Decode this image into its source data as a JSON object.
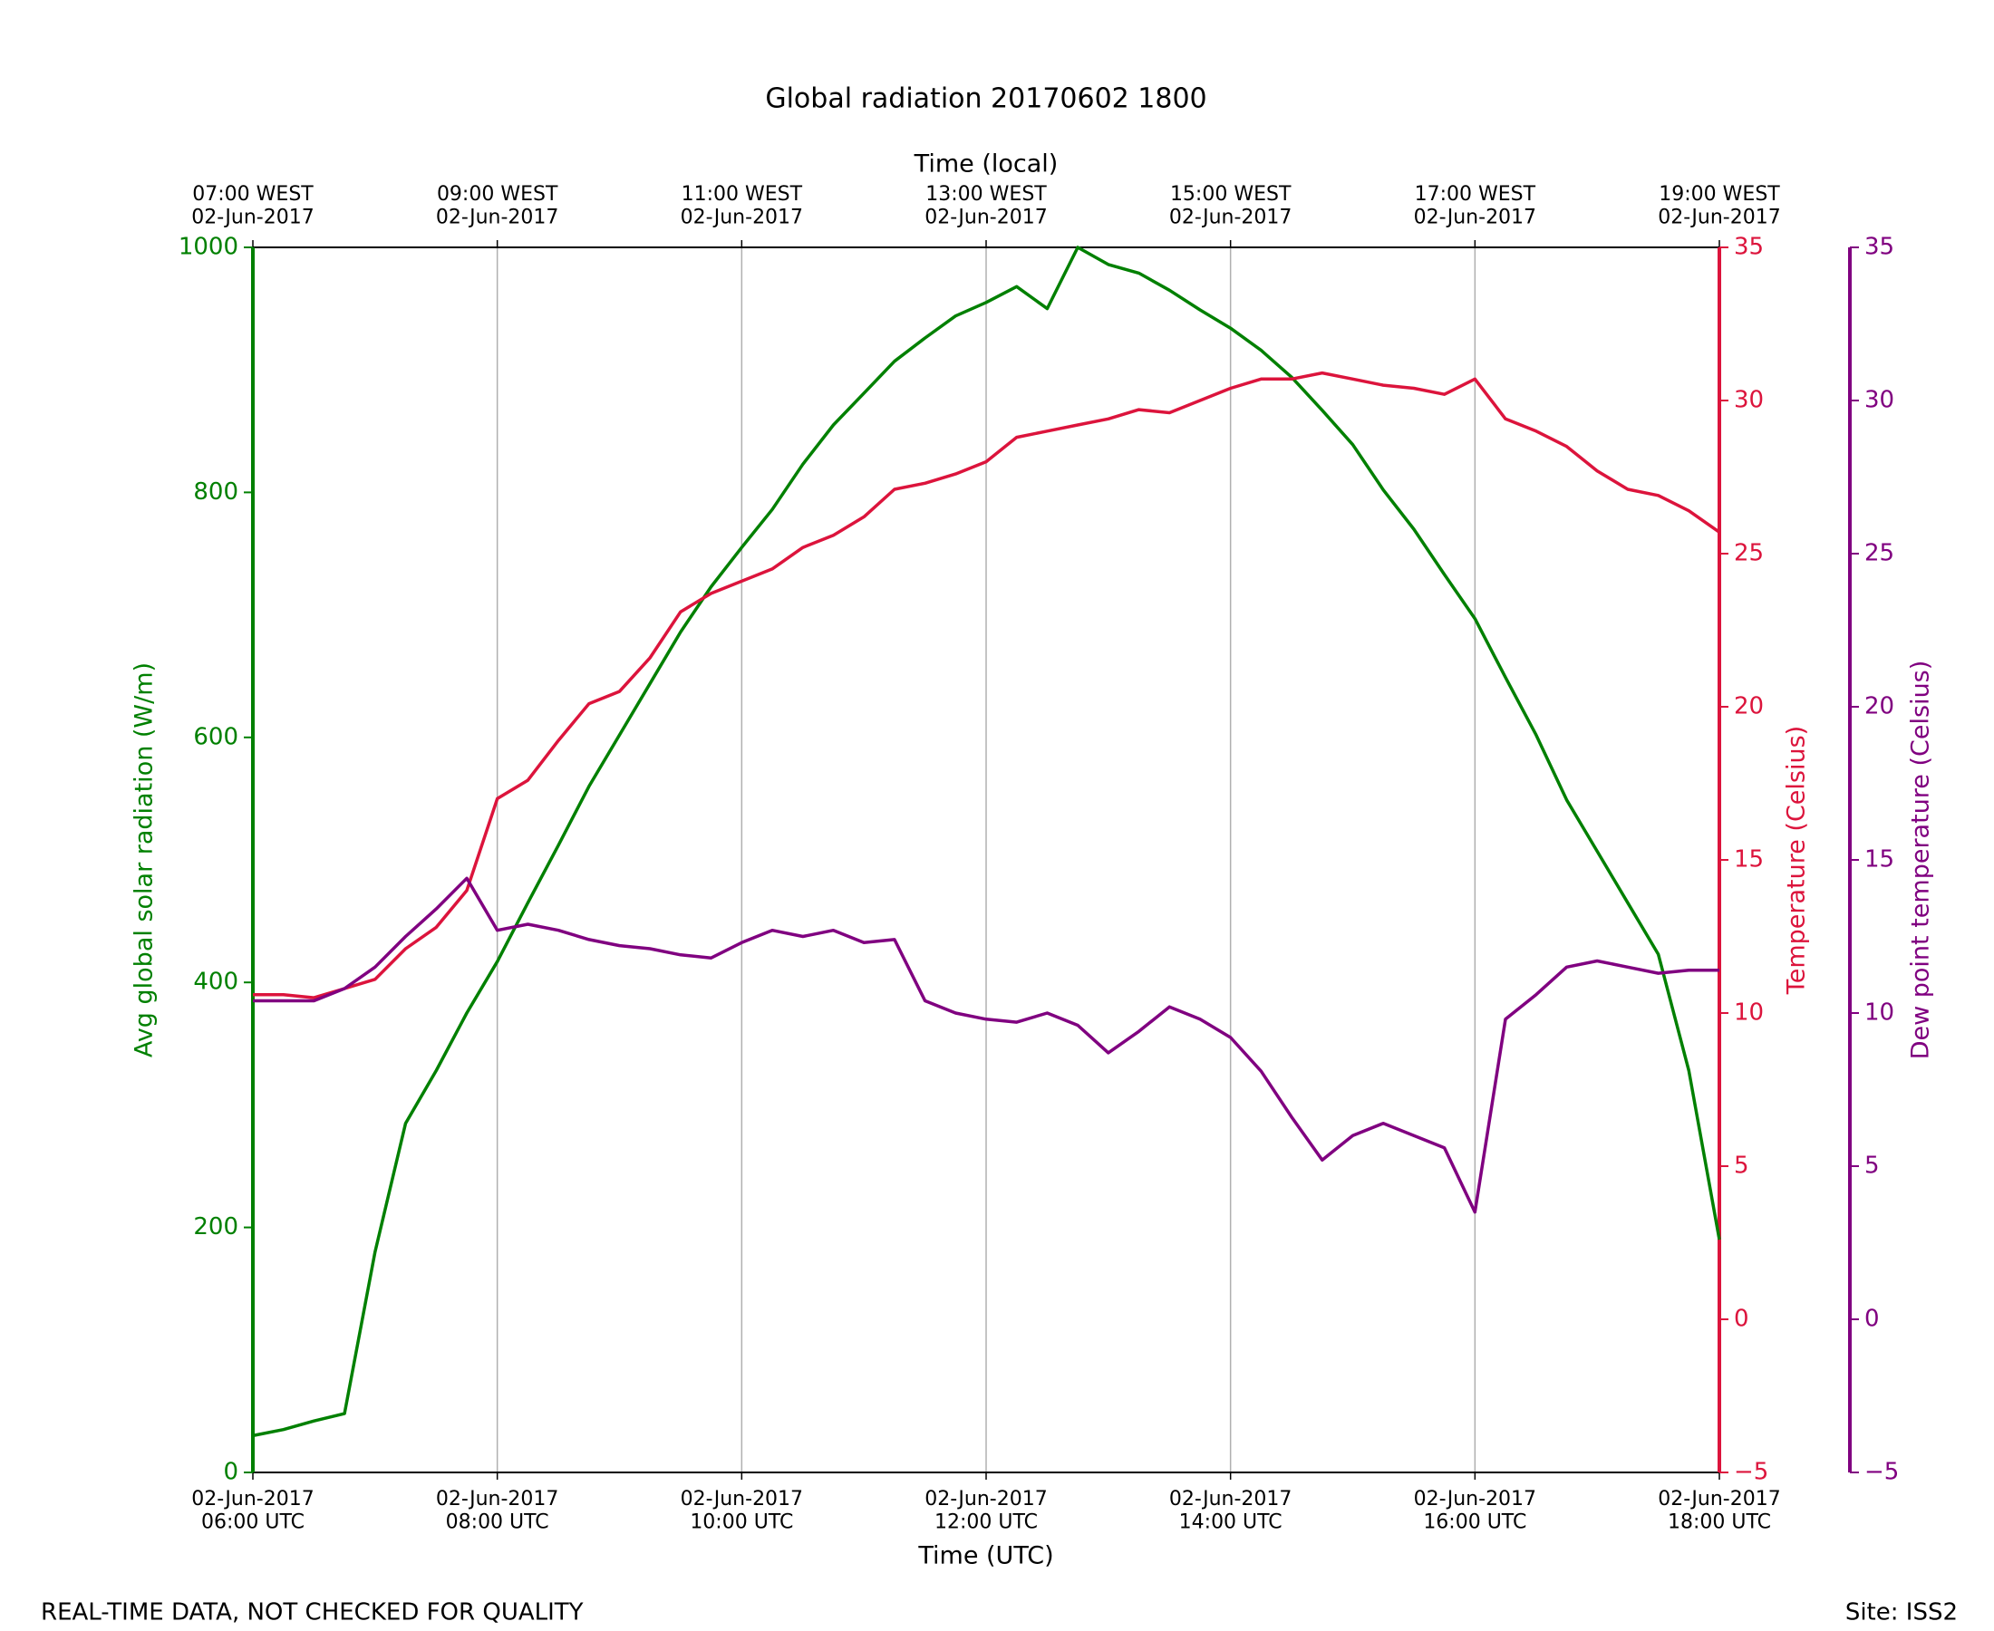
{
  "chart_data": {
    "type": "line",
    "title": "Global radiation 20170602 1800",
    "xlabel": "Time (UTC)",
    "x2label": "Time (local)",
    "ylabel": "Avg global solar radiation (W/m)",
    "y2label": "Temperature (Celsius)",
    "y3label": "Dew point temperature (Celsius)",
    "footer_left": "REAL-TIME DATA, NOT CHECKED FOR QUALITY",
    "footer_right": "Site: ISS2",
    "grid": "x",
    "x": [
      "2017-06-02 06:00",
      "2017-06-02 06:15",
      "2017-06-02 06:30",
      "2017-06-02 06:45",
      "2017-06-02 07:00",
      "2017-06-02 07:15",
      "2017-06-02 07:30",
      "2017-06-02 07:45",
      "2017-06-02 08:00",
      "2017-06-02 08:15",
      "2017-06-02 08:30",
      "2017-06-02 08:45",
      "2017-06-02 09:00",
      "2017-06-02 09:15",
      "2017-06-02 09:30",
      "2017-06-02 09:45",
      "2017-06-02 10:00",
      "2017-06-02 10:15",
      "2017-06-02 10:30",
      "2017-06-02 10:45",
      "2017-06-02 11:00",
      "2017-06-02 11:15",
      "2017-06-02 11:30",
      "2017-06-02 11:45",
      "2017-06-02 12:00",
      "2017-06-02 12:15",
      "2017-06-02 12:30",
      "2017-06-02 12:45",
      "2017-06-02 13:00",
      "2017-06-02 13:15",
      "2017-06-02 13:30",
      "2017-06-02 13:45",
      "2017-06-02 14:00",
      "2017-06-02 14:15",
      "2017-06-02 14:30",
      "2017-06-02 14:45",
      "2017-06-02 15:00",
      "2017-06-02 15:15",
      "2017-06-02 15:30",
      "2017-06-02 15:45",
      "2017-06-02 16:00",
      "2017-06-02 16:15",
      "2017-06-02 16:30",
      "2017-06-02 16:45",
      "2017-06-02 17:00",
      "2017-06-02 17:15",
      "2017-06-02 17:30",
      "2017-06-02 17:45",
      "2017-06-02 18:00"
    ],
    "series": [
      {
        "name": "Avg global solar radiation",
        "color": "#008000",
        "axis": "y",
        "values": [
          30,
          35,
          42,
          48,
          180,
          285,
          328,
          375,
          417,
          465,
          512,
          560,
          602,
          644,
          686,
          723,
          755,
          786,
          823,
          855,
          881,
          907,
          926,
          944,
          955,
          968,
          950,
          1000,
          986,
          979,
          965,
          949,
          934,
          916,
          894,
          867,
          839,
          802,
          770,
          733,
          697,
          649,
          602,
          549,
          507,
          465,
          423,
          328,
          190
        ]
      },
      {
        "name": "Temperature",
        "color": "#dc143c",
        "axis": "y2",
        "values": [
          10.6,
          10.6,
          10.5,
          10.8,
          11.1,
          12.1,
          12.8,
          14.0,
          17.0,
          17.6,
          18.9,
          20.1,
          20.5,
          21.6,
          23.1,
          23.7,
          24.1,
          24.5,
          25.2,
          25.6,
          26.2,
          27.1,
          27.3,
          27.6,
          28.0,
          28.8,
          29.0,
          29.2,
          29.4,
          29.7,
          29.6,
          30.0,
          30.4,
          30.7,
          30.7,
          30.9,
          30.7,
          30.5,
          30.4,
          30.2,
          30.7,
          29.4,
          29.0,
          28.5,
          27.7,
          27.1,
          26.9,
          26.4,
          25.7
        ]
      },
      {
        "name": "Dew point temperature",
        "color": "#800080",
        "axis": "y3",
        "values": [
          10.4,
          10.4,
          10.4,
          10.8,
          11.5,
          12.5,
          13.4,
          14.4,
          12.7,
          12.9,
          12.7,
          12.4,
          12.2,
          12.1,
          11.9,
          11.8,
          12.3,
          12.7,
          12.5,
          12.7,
          12.3,
          12.4,
          10.4,
          10.0,
          9.8,
          9.7,
          10.0,
          9.6,
          8.7,
          9.4,
          10.2,
          9.8,
          9.2,
          8.1,
          6.6,
          5.2,
          6.0,
          6.4,
          6.0,
          5.6,
          3.5,
          9.8,
          10.6,
          11.5,
          11.7,
          11.5,
          11.3,
          11.4,
          11.4
        ]
      }
    ],
    "xlim": [
      "2017-06-02 06:00",
      "2017-06-02 18:00"
    ],
    "xticks": [
      {
        "value": "2017-06-02 06:00",
        "label": "02-Jun-2017\n06:00 UTC"
      },
      {
        "value": "2017-06-02 08:00",
        "label": "02-Jun-2017\n08:00 UTC"
      },
      {
        "value": "2017-06-02 10:00",
        "label": "02-Jun-2017\n10:00 UTC"
      },
      {
        "value": "2017-06-02 12:00",
        "label": "02-Jun-2017\n12:00 UTC"
      },
      {
        "value": "2017-06-02 14:00",
        "label": "02-Jun-2017\n14:00 UTC"
      },
      {
        "value": "2017-06-02 16:00",
        "label": "02-Jun-2017\n16:00 UTC"
      },
      {
        "value": "2017-06-02 18:00",
        "label": "02-Jun-2017\n18:00 UTC"
      }
    ],
    "x2ticks": [
      {
        "value": "2017-06-02 06:00",
        "label": "07:00 WEST\n02-Jun-2017"
      },
      {
        "value": "2017-06-02 08:00",
        "label": "09:00 WEST\n02-Jun-2017"
      },
      {
        "value": "2017-06-02 10:00",
        "label": "11:00 WEST\n02-Jun-2017"
      },
      {
        "value": "2017-06-02 12:00",
        "label": "13:00 WEST\n02-Jun-2017"
      },
      {
        "value": "2017-06-02 14:00",
        "label": "15:00 WEST\n02-Jun-2017"
      },
      {
        "value": "2017-06-02 16:00",
        "label": "17:00 WEST\n02-Jun-2017"
      },
      {
        "value": "2017-06-02 18:00",
        "label": "19:00 WEST\n02-Jun-2017"
      }
    ],
    "ylim": [
      0,
      1000
    ],
    "yticks": [
      0,
      200,
      400,
      600,
      800,
      1000
    ],
    "y2lim": [
      -5,
      35
    ],
    "y2ticks": [
      {
        "value": -5,
        "label": "−5"
      },
      0,
      5,
      10,
      15,
      20,
      25,
      30,
      35
    ],
    "y3lim": [
      -5,
      35
    ],
    "y3ticks": [
      {
        "value": -5,
        "label": "−5"
      },
      0,
      5,
      10,
      15,
      20,
      25,
      30,
      35
    ]
  }
}
